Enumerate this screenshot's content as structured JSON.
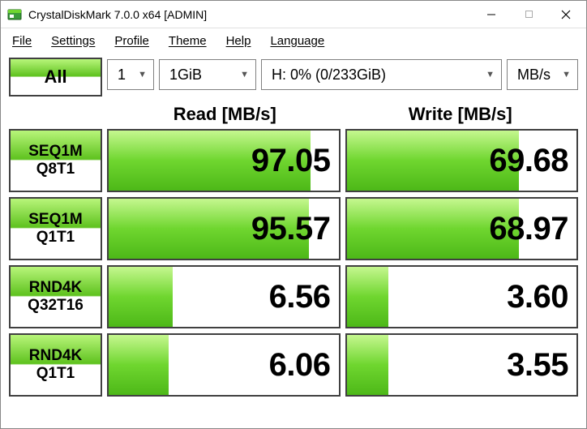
{
  "window": {
    "title": "CrystalDiskMark 7.0.0 x64 [ADMIN]"
  },
  "menu": {
    "file": "File",
    "settings": "Settings",
    "profile": "Profile",
    "theme": "Theme",
    "help": "Help",
    "language": "Language"
  },
  "controls": {
    "all_label": "All",
    "runs": "1",
    "size": "1GiB",
    "drive": "H: 0% (0/233GiB)",
    "unit": "MB/s"
  },
  "headers": {
    "read": "Read [MB/s]",
    "write": "Write [MB/s]"
  },
  "rows": [
    {
      "label1": "SEQ1M",
      "label2": "Q8T1",
      "read": "97.05",
      "read_pct": 88,
      "write": "69.68",
      "write_pct": 75
    },
    {
      "label1": "SEQ1M",
      "label2": "Q1T1",
      "read": "95.57",
      "read_pct": 87,
      "write": "68.97",
      "write_pct": 75
    },
    {
      "label1": "RND4K",
      "label2": "Q32T16",
      "read": "6.56",
      "read_pct": 28,
      "write": "3.60",
      "write_pct": 18
    },
    {
      "label1": "RND4K",
      "label2": "Q1T1",
      "read": "6.06",
      "read_pct": 26,
      "write": "3.55",
      "write_pct": 18
    }
  ],
  "colors": {
    "bar_top": "#c5f78f",
    "bar_mid": "#6fd62f",
    "bar_bot": "#4db818",
    "border": "#404040"
  }
}
